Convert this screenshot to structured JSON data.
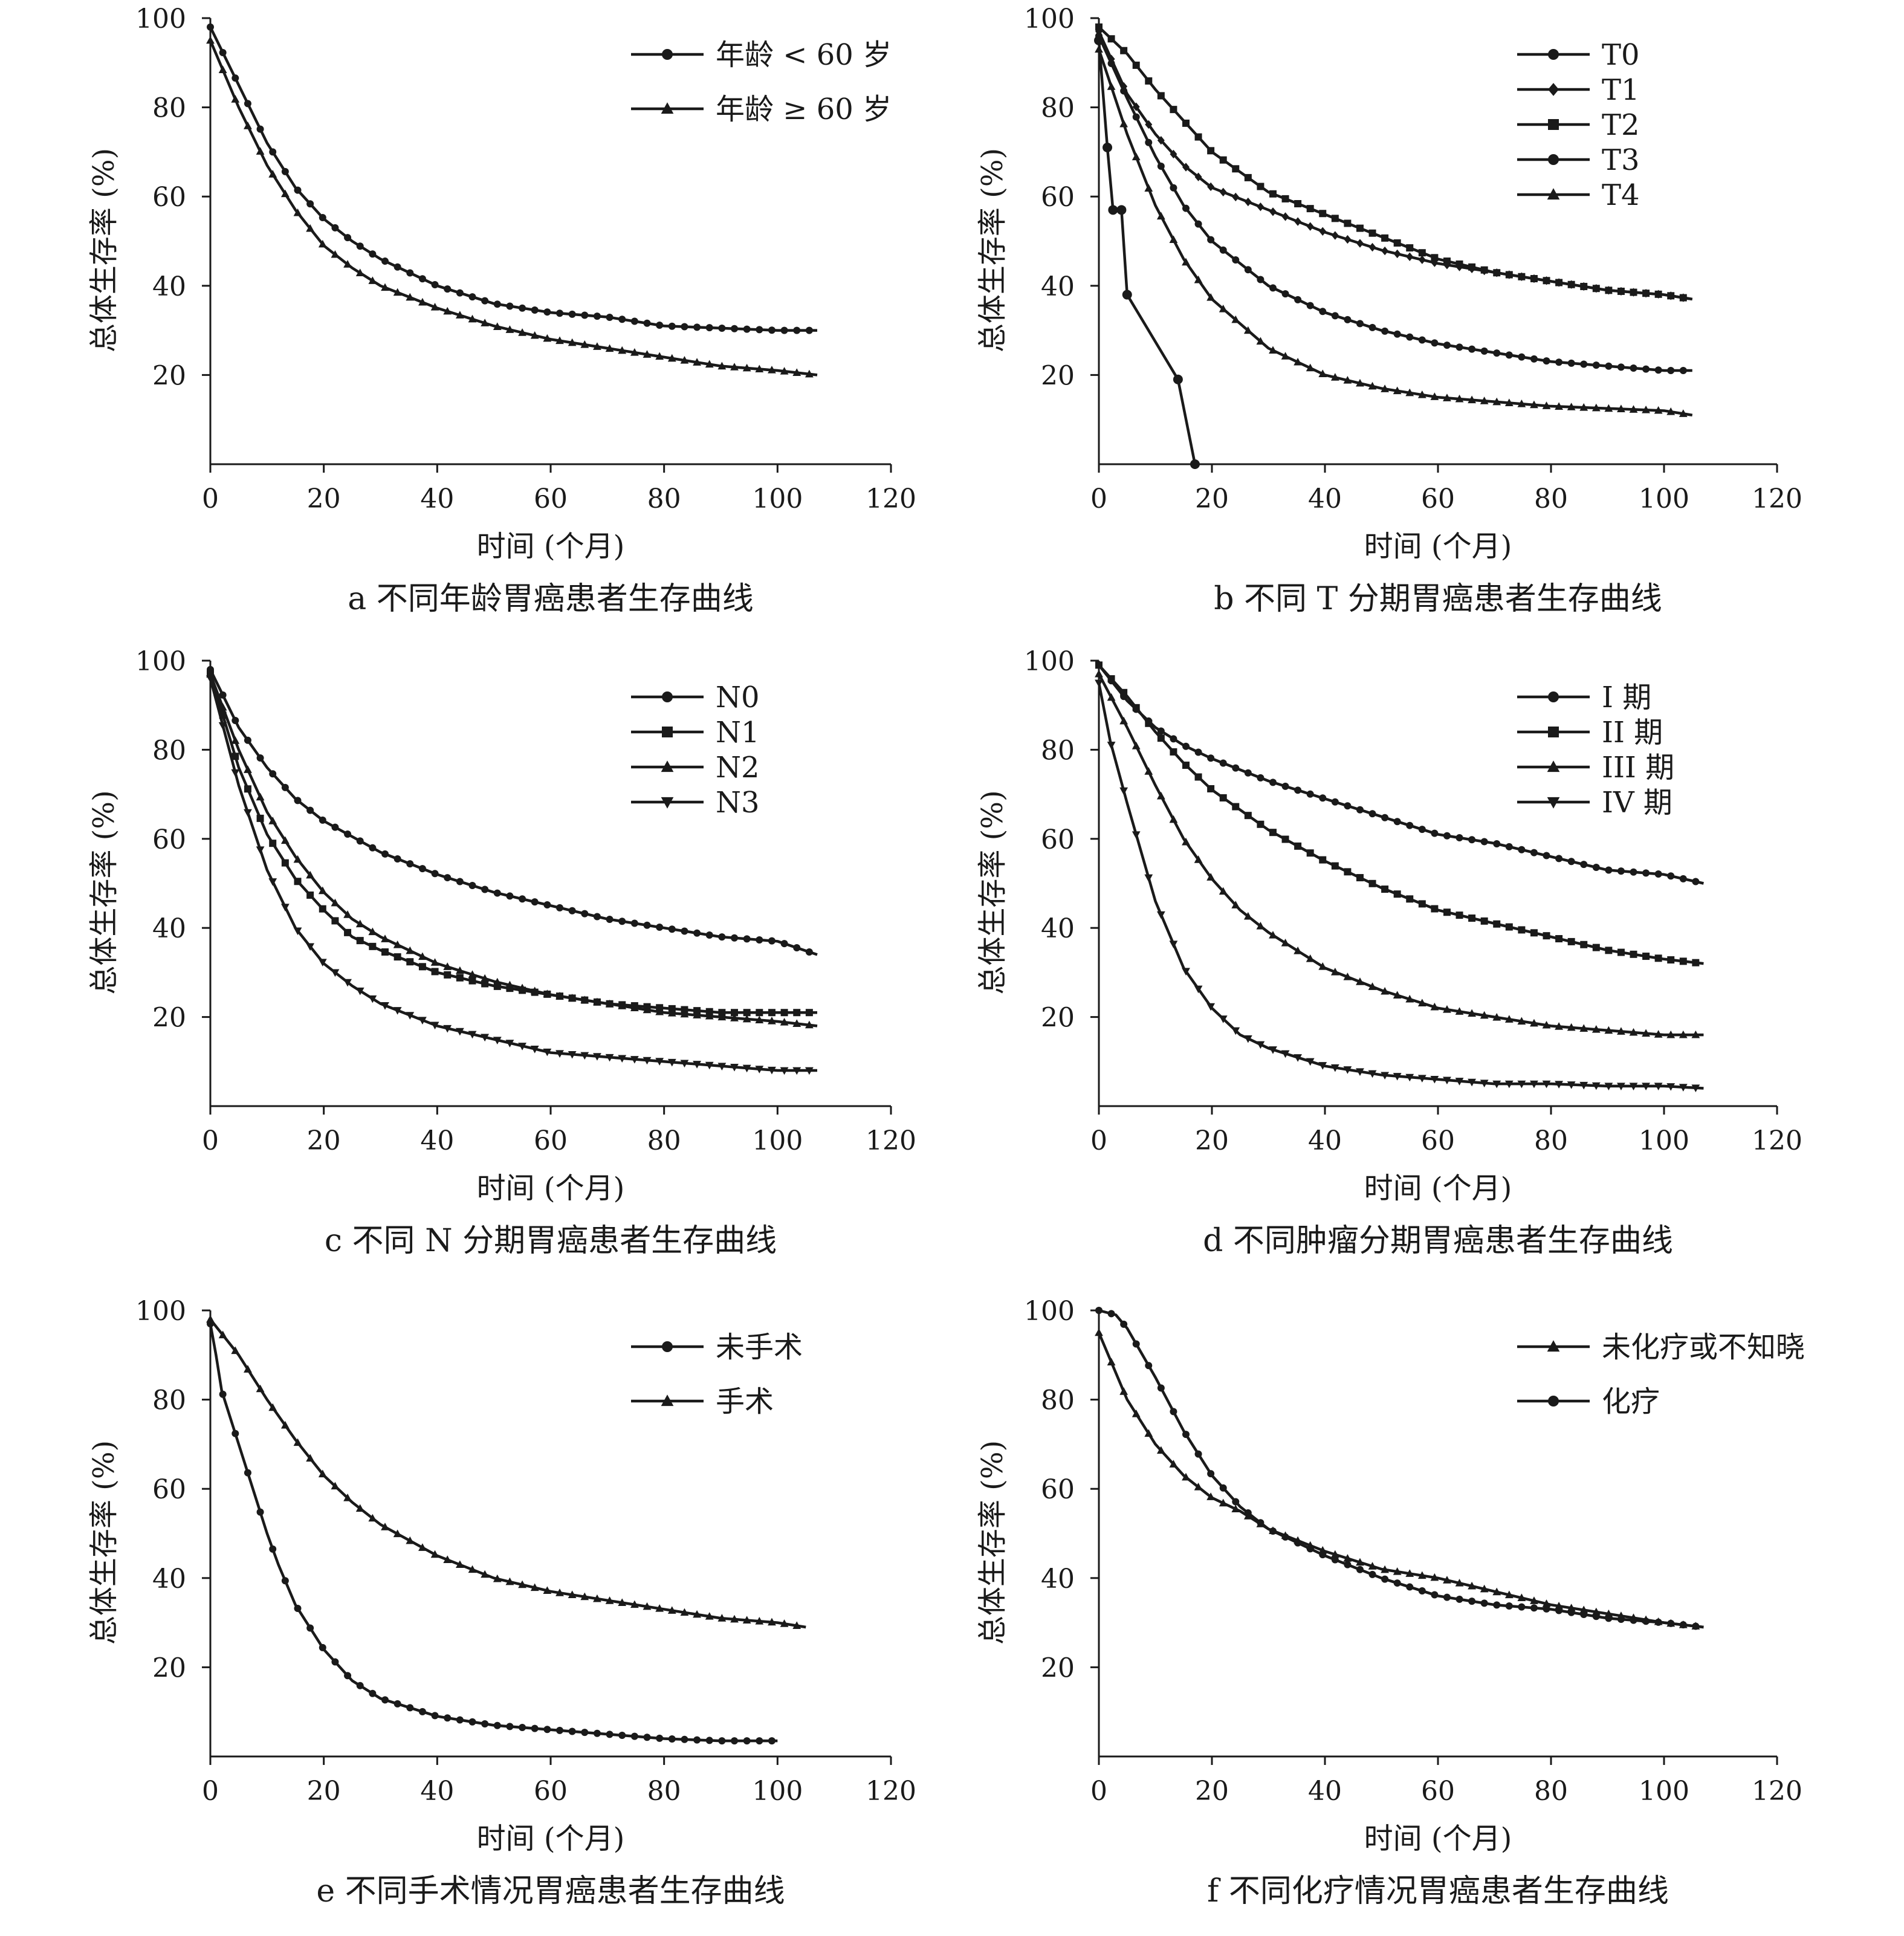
{
  "chart_data": [
    {
      "id": "a",
      "type": "line",
      "caption": "a 不同年龄胃癌患者生存曲线",
      "xlabel": "时间 (个月)",
      "ylabel": "总体生存率 (%)",
      "xlim": [
        0,
        120
      ],
      "ylim": [
        0,
        100
      ],
      "xticks": [
        "0",
        "20",
        "40",
        "60",
        "80",
        "100",
        "120"
      ],
      "yticks": [
        "20",
        "40",
        "60",
        "80",
        "100"
      ],
      "legend_position": "top-right",
      "series": [
        {
          "name": "年龄 < 60 岁",
          "marker": "circle",
          "x": [
            0,
            5,
            10,
            15,
            20,
            25,
            30,
            40,
            50,
            60,
            70,
            80,
            90,
            100,
            107
          ],
          "y": [
            98,
            85,
            72,
            62,
            55,
            50,
            46,
            40,
            36,
            34,
            33,
            31,
            30.5,
            30,
            30
          ]
        },
        {
          "name": "年龄 ≥ 60 岁",
          "marker": "triangle",
          "x": [
            0,
            5,
            10,
            15,
            20,
            25,
            30,
            40,
            50,
            60,
            70,
            80,
            90,
            100,
            107
          ],
          "y": [
            95,
            80,
            67,
            57,
            49,
            44,
            40,
            35,
            31,
            28,
            26,
            24,
            22,
            21,
            20
          ]
        }
      ]
    },
    {
      "id": "b",
      "type": "line",
      "caption": "b 不同 T 分期胃癌患者生存曲线",
      "xlabel": "时间 (个月)",
      "ylabel": "总体生存率 (%)",
      "xlim": [
        0,
        120
      ],
      "ylim": [
        0,
        100
      ],
      "xticks": [
        "0",
        "20",
        "40",
        "60",
        "80",
        "100",
        "120"
      ],
      "yticks": [
        "20",
        "40",
        "60",
        "80",
        "100"
      ],
      "legend_position": "top-right",
      "series": [
        {
          "name": "T0",
          "marker": "circle",
          "x": [
            0,
            1.5,
            2.5,
            4,
            5,
            14,
            17
          ],
          "y": [
            95,
            71,
            57,
            57,
            38,
            19,
            0
          ]
        },
        {
          "name": "T1",
          "marker": "diamond",
          "x": [
            0,
            5,
            10,
            15,
            20,
            30,
            40,
            50,
            60,
            70,
            80,
            90,
            100,
            105
          ],
          "y": [
            97,
            83,
            74,
            67,
            62,
            57,
            52,
            48,
            45,
            43,
            41,
            39,
            38,
            37
          ]
        },
        {
          "name": "T2",
          "marker": "square",
          "x": [
            0,
            5,
            10,
            15,
            20,
            30,
            40,
            50,
            60,
            70,
            80,
            90,
            100,
            105
          ],
          "y": [
            98,
            92,
            84,
            77,
            70,
            61,
            56,
            51,
            46,
            43,
            41,
            39,
            38,
            37
          ]
        },
        {
          "name": "T3",
          "marker": "circle",
          "x": [
            0,
            5,
            10,
            15,
            20,
            30,
            40,
            50,
            60,
            70,
            80,
            90,
            100,
            105
          ],
          "y": [
            96,
            82,
            69,
            58,
            50,
            40,
            34,
            30,
            27,
            25,
            23,
            22,
            21,
            21
          ]
        },
        {
          "name": "T4",
          "marker": "triangle",
          "x": [
            0,
            5,
            10,
            15,
            20,
            30,
            40,
            50,
            60,
            70,
            80,
            90,
            100,
            105
          ],
          "y": [
            93,
            74,
            58,
            46,
            37,
            26,
            20,
            17,
            15,
            14,
            13,
            12.5,
            12,
            11
          ]
        }
      ]
    },
    {
      "id": "c",
      "type": "line",
      "caption": "c 不同 N 分期胃癌患者生存曲线",
      "xlabel": "时间 (个月)",
      "ylabel": "总体生存率 (%)",
      "xlim": [
        0,
        120
      ],
      "ylim": [
        0,
        100
      ],
      "xticks": [
        "0",
        "20",
        "40",
        "60",
        "80",
        "100",
        "120"
      ],
      "yticks": [
        "20",
        "40",
        "60",
        "80",
        "100"
      ],
      "legend_position": "top-right",
      "series": [
        {
          "name": "N0",
          "marker": "circle",
          "x": [
            0,
            5,
            10,
            15,
            20,
            30,
            40,
            50,
            60,
            70,
            80,
            90,
            100,
            107
          ],
          "y": [
            98,
            85,
            76,
            69,
            64,
            57,
            52,
            48,
            45,
            42,
            40,
            38,
            37,
            34
          ]
        },
        {
          "name": "N1",
          "marker": "square",
          "x": [
            0,
            5,
            10,
            15,
            20,
            25,
            30,
            40,
            50,
            60,
            70,
            80,
            90,
            100,
            107
          ],
          "y": [
            97,
            76,
            61,
            51,
            44,
            38,
            35,
            30,
            27,
            25,
            23,
            22,
            21,
            21,
            21
          ]
        },
        {
          "name": "N2",
          "marker": "triangle",
          "x": [
            0,
            5,
            10,
            15,
            20,
            25,
            30,
            40,
            50,
            60,
            70,
            80,
            90,
            100,
            107
          ],
          "y": [
            97,
            80,
            66,
            56,
            48,
            42,
            38,
            32,
            28,
            25,
            23,
            21,
            20,
            19,
            18
          ]
        },
        {
          "name": "N3",
          "marker": "triangle-down",
          "x": [
            0,
            5,
            10,
            15,
            20,
            25,
            30,
            40,
            50,
            60,
            70,
            80,
            90,
            100,
            107
          ],
          "y": [
            96,
            72,
            53,
            40,
            32,
            27,
            23,
            18,
            15,
            12,
            11,
            10,
            9,
            8,
            8
          ]
        }
      ]
    },
    {
      "id": "d",
      "type": "line",
      "caption": "d 不同肿瘤分期胃癌患者生存曲线",
      "xlabel": "时间 (个月)",
      "ylabel": "总体生存率 (%)",
      "xlim": [
        0,
        120
      ],
      "ylim": [
        0,
        100
      ],
      "xticks": [
        "0",
        "20",
        "40",
        "60",
        "80",
        "100",
        "120"
      ],
      "yticks": [
        "20",
        "40",
        "60",
        "80",
        "100"
      ],
      "legend_position": "top-right",
      "series": [
        {
          "name": "I 期",
          "marker": "circle",
          "x": [
            0,
            5,
            10,
            15,
            20,
            30,
            40,
            50,
            60,
            70,
            80,
            90,
            100,
            107
          ],
          "y": [
            99,
            91,
            85,
            81,
            78,
            73,
            69,
            65,
            61,
            59,
            56,
            53,
            52,
            50
          ]
        },
        {
          "name": "II 期",
          "marker": "square",
          "x": [
            0,
            5,
            10,
            15,
            20,
            30,
            40,
            50,
            60,
            70,
            80,
            90,
            100,
            107
          ],
          "y": [
            99,
            92,
            84,
            77,
            71,
            62,
            55,
            49,
            44,
            41,
            38,
            35,
            33,
            32
          ]
        },
        {
          "name": "III 期",
          "marker": "triangle",
          "x": [
            0,
            5,
            10,
            15,
            20,
            25,
            30,
            40,
            50,
            60,
            70,
            80,
            90,
            100,
            107
          ],
          "y": [
            97,
            85,
            72,
            60,
            51,
            44,
            39,
            31,
            26,
            22,
            20,
            18,
            17,
            16,
            16
          ]
        },
        {
          "name": "IV 期",
          "marker": "triangle-down",
          "x": [
            0,
            2,
            5,
            10,
            15,
            20,
            25,
            30,
            40,
            50,
            60,
            70,
            80,
            90,
            100,
            107
          ],
          "y": [
            95,
            82,
            68,
            46,
            31,
            22,
            16,
            13,
            9,
            7,
            6,
            5,
            5,
            4.5,
            4.5,
            4
          ]
        }
      ]
    },
    {
      "id": "e",
      "type": "line",
      "caption": "e 不同手术情况胃癌患者生存曲线",
      "xlabel": "时间 (个月)",
      "ylabel": "总体生存率 (%)",
      "xlim": [
        0,
        120
      ],
      "ylim": [
        0,
        100
      ],
      "xticks": [
        "0",
        "20",
        "40",
        "60",
        "80",
        "100",
        "120"
      ],
      "yticks": [
        "20",
        "40",
        "60",
        "80",
        "100"
      ],
      "legend_position": "top-right",
      "series": [
        {
          "name": "未手术",
          "marker": "circle",
          "x": [
            0,
            1,
            2,
            4,
            6,
            8,
            10,
            12,
            15,
            20,
            25,
            30,
            40,
            50,
            60,
            70,
            80,
            90,
            100
          ],
          "y": [
            97,
            90,
            82,
            74,
            66,
            58,
            50,
            43,
            34,
            24,
            17,
            13,
            9,
            7,
            6,
            5,
            4,
            3.5,
            3.5
          ]
        },
        {
          "name": "手术",
          "marker": "triangle",
          "x": [
            0,
            5,
            10,
            15,
            20,
            25,
            30,
            40,
            50,
            60,
            70,
            80,
            90,
            100,
            105
          ],
          "y": [
            98,
            90,
            80,
            71,
            63,
            57,
            52,
            45,
            40,
            37,
            35,
            33,
            31,
            30,
            29
          ]
        }
      ]
    },
    {
      "id": "f",
      "type": "line",
      "caption": "f 不同化疗情况胃癌患者生存曲线",
      "xlabel": "时间 (个月)",
      "ylabel": "总体生存率 (%)",
      "xlim": [
        0,
        120
      ],
      "ylim": [
        0,
        100
      ],
      "xticks": [
        "0",
        "20",
        "40",
        "60",
        "80",
        "100",
        "120"
      ],
      "yticks": [
        "20",
        "40",
        "60",
        "80",
        "100"
      ],
      "legend_position": "top-right",
      "series": [
        {
          "name": "未化疗或不知晓",
          "marker": "triangle",
          "x": [
            0,
            5,
            10,
            15,
            20,
            25,
            30,
            40,
            50,
            60,
            70,
            80,
            90,
            100,
            107
          ],
          "y": [
            95,
            80,
            70,
            63,
            58,
            55,
            51,
            46,
            42,
            40,
            37,
            34,
            32,
            30,
            29
          ]
        },
        {
          "name": "化疗",
          "marker": "circle",
          "x": [
            0,
            3,
            5,
            10,
            15,
            20,
            25,
            30,
            40,
            50,
            60,
            70,
            80,
            90,
            100,
            107
          ],
          "y": [
            100,
            99,
            96,
            85,
            73,
            63,
            56,
            51,
            45,
            40,
            36,
            34,
            33,
            31,
            30,
            29
          ]
        }
      ]
    }
  ]
}
